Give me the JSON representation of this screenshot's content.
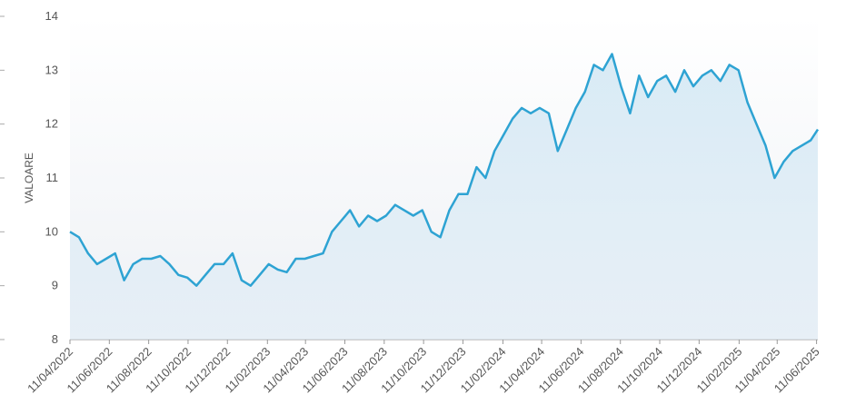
{
  "chart_data": {
    "type": "line",
    "y_label": "VALOARE",
    "x": [
      "2022-04-11",
      "2022-04-25",
      "2022-05-09",
      "2022-05-23",
      "2022-06-06",
      "2022-06-20",
      "2022-07-04",
      "2022-07-18",
      "2022-08-01",
      "2022-08-15",
      "2022-08-29",
      "2022-09-12",
      "2022-09-26",
      "2022-10-10",
      "2022-10-24",
      "2022-11-07",
      "2022-11-21",
      "2022-12-05",
      "2022-12-19",
      "2023-01-02",
      "2023-01-16",
      "2023-01-30",
      "2023-02-13",
      "2023-02-27",
      "2023-03-13",
      "2023-03-27",
      "2023-04-10",
      "2023-04-24",
      "2023-05-08",
      "2023-05-22",
      "2023-06-05",
      "2023-06-19",
      "2023-07-03",
      "2023-07-17",
      "2023-07-31",
      "2023-08-14",
      "2023-08-28",
      "2023-09-11",
      "2023-09-25",
      "2023-10-09",
      "2023-10-23",
      "2023-11-06",
      "2023-11-20",
      "2023-12-04",
      "2023-12-18",
      "2024-01-01",
      "2024-01-15",
      "2024-01-29",
      "2024-02-12",
      "2024-02-26",
      "2024-03-11",
      "2024-03-25",
      "2024-04-08",
      "2024-04-22",
      "2024-05-06",
      "2024-05-20",
      "2024-06-03",
      "2024-06-17",
      "2024-07-01",
      "2024-07-15",
      "2024-07-29",
      "2024-08-12",
      "2024-08-26",
      "2024-09-09",
      "2024-09-23",
      "2024-10-07",
      "2024-10-21",
      "2024-11-04",
      "2024-11-18",
      "2024-12-02",
      "2024-12-16",
      "2024-12-30",
      "2025-01-13",
      "2025-01-27",
      "2025-02-10",
      "2025-02-24",
      "2025-03-10",
      "2025-03-24",
      "2025-04-07",
      "2025-04-21",
      "2025-05-05",
      "2025-05-19",
      "2025-06-02",
      "2025-06-13"
    ],
    "series": [
      {
        "name": "VALOARE",
        "color": "#2ea3d3",
        "values": [
          10.0,
          9.9,
          9.6,
          9.4,
          9.5,
          9.6,
          9.1,
          9.4,
          9.5,
          9.5,
          9.55,
          9.4,
          9.2,
          9.15,
          9.0,
          9.2,
          9.4,
          9.4,
          9.6,
          9.1,
          9.0,
          9.2,
          9.4,
          9.3,
          9.25,
          9.5,
          9.5,
          9.55,
          9.6,
          10.0,
          10.2,
          10.4,
          10.1,
          10.3,
          10.2,
          10.3,
          10.5,
          10.4,
          10.3,
          10.4,
          10.0,
          9.9,
          10.4,
          10.7,
          10.7,
          11.2,
          11.0,
          11.5,
          11.8,
          12.1,
          12.3,
          12.2,
          12.3,
          12.2,
          11.5,
          11.9,
          12.3,
          12.6,
          13.1,
          13.0,
          13.3,
          12.7,
          12.2,
          12.9,
          12.5,
          12.8,
          12.9,
          12.6,
          13.0,
          12.7,
          12.9,
          13.0,
          12.8,
          13.1,
          13.0,
          12.4,
          12.0,
          11.6,
          11.0,
          11.3,
          11.5,
          11.6,
          11.7,
          11.9
        ]
      }
    ],
    "xlim": [
      "2022-04-11",
      "2025-06-13"
    ],
    "xticks": [
      {
        "value": "2022-04-11",
        "label": "11/04/2022"
      },
      {
        "value": "2022-06-11",
        "label": "11/06/2022"
      },
      {
        "value": "2022-08-11",
        "label": "11/08/2022"
      },
      {
        "value": "2022-10-11",
        "label": "11/10/2022"
      },
      {
        "value": "2022-12-11",
        "label": "11/12/2022"
      },
      {
        "value": "2023-02-11",
        "label": "11/02/2023"
      },
      {
        "value": "2023-04-11",
        "label": "11/04/2023"
      },
      {
        "value": "2023-06-11",
        "label": "11/06/2023"
      },
      {
        "value": "2023-08-11",
        "label": "11/08/2023"
      },
      {
        "value": "2023-10-11",
        "label": "11/10/2023"
      },
      {
        "value": "2023-12-11",
        "label": "11/12/2023"
      },
      {
        "value": "2024-02-11",
        "label": "11/02/2024"
      },
      {
        "value": "2024-04-11",
        "label": "11/04/2024"
      },
      {
        "value": "2024-06-11",
        "label": "11/06/2024"
      },
      {
        "value": "2024-08-11",
        "label": "11/08/2024"
      },
      {
        "value": "2024-10-11",
        "label": "11/10/2024"
      },
      {
        "value": "2024-12-11",
        "label": "11/12/2024"
      },
      {
        "value": "2025-02-11",
        "label": "11/02/2025"
      },
      {
        "value": "2025-04-11",
        "label": "11/04/2025"
      },
      {
        "value": "2025-06-11",
        "label": "11/06/2025"
      }
    ],
    "ylim": [
      8,
      14
    ],
    "yticks": [
      8,
      9,
      10,
      11,
      12,
      13,
      14
    ]
  }
}
